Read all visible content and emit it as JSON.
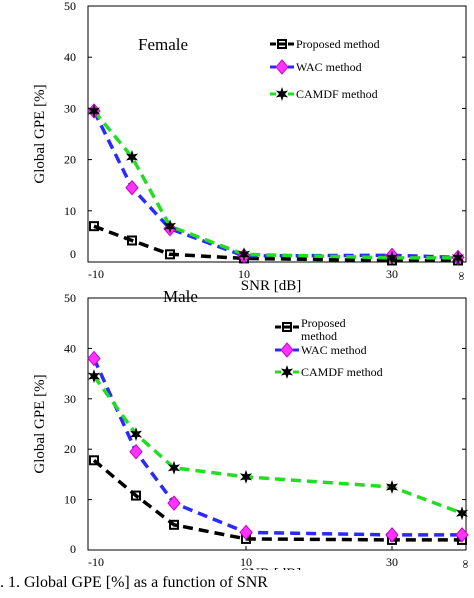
{
  "caption": ". 1. Global GPE [%] as a function of SNR",
  "chart_data": [
    {
      "type": "line",
      "title": "Female",
      "xlabel": "SNR [dB]",
      "ylabel": "Global GPE [%]",
      "categories": [
        "-10",
        "-5",
        "0",
        "10",
        "30",
        "∞"
      ],
      "x_tick_labels": [
        "-10",
        "10",
        "30",
        "∞"
      ],
      "y_tick_labels": [
        "0",
        "10",
        "20",
        "30",
        "40",
        "50"
      ],
      "ylim": [
        0,
        50
      ],
      "grid": false,
      "legend_position": "top-right",
      "series": [
        {
          "name": "Proposed method",
          "color": "#000000",
          "marker": "square",
          "values": [
            7,
            4.2,
            1.5,
            0.7,
            0.3,
            0.3
          ]
        },
        {
          "name": "WAC method",
          "color": "#2a2aff",
          "marker": "diamond",
          "values": [
            29.5,
            14.5,
            6.5,
            1.2,
            1.3,
            0.9
          ]
        },
        {
          "name": "CAMDF method",
          "color": "#22dd22",
          "marker": "star",
          "values": [
            29.5,
            20.5,
            7,
            1.5,
            0.8,
            0.8
          ]
        }
      ]
    },
    {
      "type": "line",
      "title": "Male",
      "xlabel": "SNR [dB]",
      "ylabel": "Global GPE [%]",
      "categories": [
        "-10",
        "-5",
        "0",
        "10",
        "30",
        "∞"
      ],
      "x_tick_labels": [
        "-10",
        "10",
        "30",
        "∞"
      ],
      "y_tick_labels": [
        "0",
        "10",
        "20",
        "30",
        "40",
        "50"
      ],
      "ylim": [
        0,
        50
      ],
      "grid": false,
      "legend_position": "top-right",
      "series": [
        {
          "name": "Proposed\nmethod",
          "color": "#000000",
          "marker": "square",
          "values": [
            17.8,
            10.8,
            5,
            2.2,
            2,
            2
          ]
        },
        {
          "name": "WAC method",
          "color": "#2a2aff",
          "marker": "diamond",
          "values": [
            38,
            19.5,
            9.3,
            3.5,
            3,
            3
          ]
        },
        {
          "name": "CAMDF method",
          "color": "#22dd22",
          "marker": "star",
          "values": [
            34.5,
            23,
            16.3,
            14.5,
            12.5,
            7.3
          ]
        }
      ]
    }
  ]
}
